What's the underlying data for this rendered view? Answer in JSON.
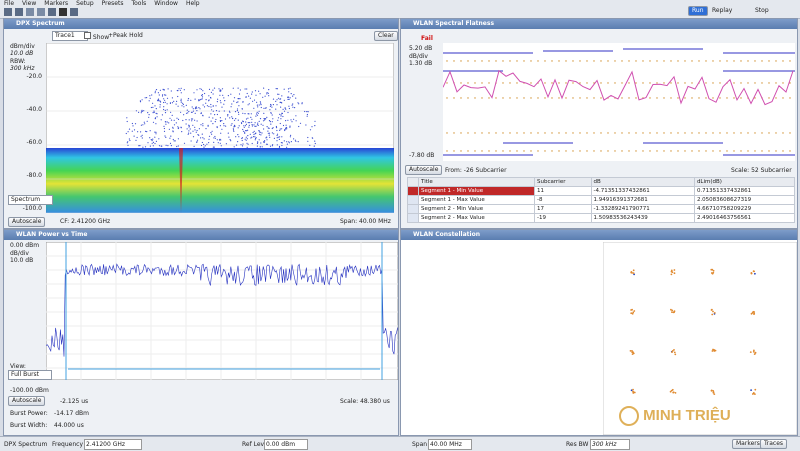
{
  "menu": [
    "File",
    "View",
    "Markers",
    "Setup",
    "Presets",
    "Tools",
    "Window",
    "Help"
  ],
  "toolbar": {
    "run": "Run",
    "replay": "Replay",
    "stop": "Stop"
  },
  "dpx": {
    "title": "DPX Spectrum",
    "trace": "Trace1",
    "show": "Show",
    "peak_hold": "+Peak Hold",
    "clear": "Clear",
    "scale_label": "dBm/div",
    "scale": "10.0 dB",
    "rbw_label": "RBW:",
    "rbw": "300 kHz",
    "y_labels": [
      "-20.0",
      "-40.0",
      "-60.0",
      "-80.0",
      "-100.0"
    ],
    "view": "Spectrum",
    "autoscale": "Autoscale",
    "cf": "CF: 2.41200 GHz",
    "span": "Span: 40.00 MHz"
  },
  "flatness": {
    "title": "WLAN Spectral Flatness",
    "status": "Fail",
    "top": "5.20 dB",
    "scale_label": "dB/div",
    "scale": "1.30 dB",
    "bottom": "-7.80 dB",
    "autoscale": "Autoscale",
    "from": "From: -26 Subcarrier",
    "span": "Scale: 52 Subcarrier",
    "table": {
      "header": [
        "Title",
        "Subcarrier",
        "dB",
        "dLim(dB)"
      ],
      "rows": [
        [
          "Segment 1 - Min Value",
          "11",
          "-4.71351337432861",
          "0.71351337432861"
        ],
        [
          "Segment 1 - Max Value",
          "-8",
          "1.94916391372681",
          "2.05083608627319"
        ],
        [
          "Segment 2 - Min Value",
          "17",
          "-1.33289241790771",
          "4.66710758209229"
        ],
        [
          "Segment 2 - Max Value",
          "-19",
          "1.50983536243439",
          "2.49016463756561"
        ]
      ]
    }
  },
  "pvt": {
    "title": "WLAN Power vs Time",
    "top": "0.00 dBm",
    "scale_label": "dB/div",
    "scale": "10.0 dB",
    "view_label": "View:",
    "view": "Full Burst",
    "bottom": "-100.00 dBm",
    "autoscale": "Autoscale",
    "start": "-2.125 us",
    "span": "Scale: 48.380 us",
    "burst_power_label": "Burst Power:",
    "burst_power": "-14.17 dBm",
    "burst_width_label": "Burst Width:",
    "burst_width": "44.000 us"
  },
  "constellation": {
    "title": "WLAN Constellation"
  },
  "status_bar": {
    "mode": "DPX Spectrum",
    "freq_label": "Frequency",
    "freq": "2.41200 GHz",
    "ref_label": "Ref Lev",
    "ref": "0.00 dBm",
    "span_label": "Span",
    "span": "40.00 MHz",
    "rbw_label": "Res BW",
    "rbw": "300 kHz",
    "markers": "Markers",
    "traces": "Traces"
  },
  "watermark": "MINH TRIỆU"
}
